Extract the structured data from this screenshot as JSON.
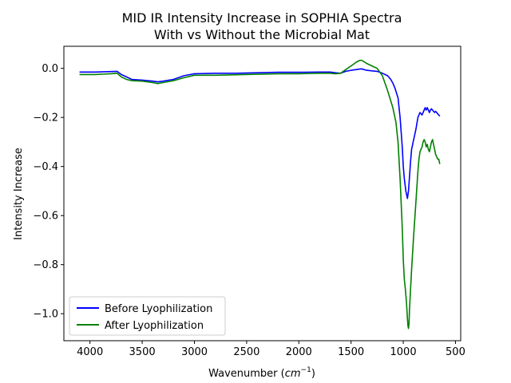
{
  "chart_data": {
    "type": "line",
    "title_line1": "MID IR Intensity Increase in SOPHIA Spectra",
    "title_line2": "With vs Without the Microbial Mat",
    "xlabel": "Wavenumber",
    "xlabel_unit_base": "cm",
    "xlabel_unit_exp": "−1",
    "ylabel": "Intensity Increase",
    "x_reversed": true,
    "xlim": [
      4250,
      450
    ],
    "ylim": [
      -1.11,
      0.09
    ],
    "xticks": [
      4000,
      3500,
      3000,
      2500,
      2000,
      1500,
      1000,
      500
    ],
    "yticks": [
      0.0,
      -0.2,
      -0.4,
      -0.6,
      -0.8,
      -1.0
    ],
    "ytick_labels": [
      "0.0",
      "−0.2",
      "−0.4",
      "−0.6",
      "−0.8",
      "−1.0"
    ],
    "grid": false,
    "legend_position": "lower-left",
    "series": [
      {
        "name": "Before Lyophilization",
        "color": "#0000ff",
        "x": [
          4100,
          3950,
          3800,
          3740,
          3700,
          3650,
          3600,
          3500,
          3400,
          3350,
          3300,
          3200,
          3100,
          3000,
          2800,
          2600,
          2400,
          2200,
          2000,
          1800,
          1700,
          1650,
          1600,
          1550,
          1500,
          1450,
          1420,
          1400,
          1350,
          1300,
          1250,
          1200,
          1150,
          1120,
          1100,
          1080,
          1050,
          1030,
          1010,
          1000,
          990,
          975,
          960,
          950,
          940,
          930,
          920,
          900,
          880,
          860,
          840,
          820,
          800,
          790,
          780,
          770,
          760,
          750,
          740,
          730,
          720,
          710,
          700,
          690,
          680,
          670,
          660,
          650
        ],
        "y": [
          -0.015,
          -0.015,
          -0.013,
          -0.012,
          -0.025,
          -0.035,
          -0.045,
          -0.048,
          -0.052,
          -0.055,
          -0.052,
          -0.045,
          -0.03,
          -0.022,
          -0.02,
          -0.02,
          -0.018,
          -0.016,
          -0.016,
          -0.015,
          -0.015,
          -0.018,
          -0.02,
          -0.012,
          -0.008,
          -0.005,
          -0.003,
          -0.002,
          -0.008,
          -0.01,
          -0.012,
          -0.02,
          -0.03,
          -0.045,
          -0.06,
          -0.08,
          -0.12,
          -0.2,
          -0.32,
          -0.4,
          -0.45,
          -0.5,
          -0.53,
          -0.5,
          -0.44,
          -0.38,
          -0.33,
          -0.29,
          -0.25,
          -0.2,
          -0.18,
          -0.19,
          -0.17,
          -0.16,
          -0.17,
          -0.16,
          -0.17,
          -0.18,
          -0.17,
          -0.165,
          -0.17,
          -0.175,
          -0.18,
          -0.175,
          -0.18,
          -0.185,
          -0.19,
          -0.195
        ]
      },
      {
        "name": "After Lyophilization",
        "color": "#008000",
        "x": [
          4100,
          3950,
          3800,
          3740,
          3700,
          3650,
          3600,
          3500,
          3400,
          3350,
          3300,
          3200,
          3100,
          3000,
          2800,
          2600,
          2400,
          2200,
          2000,
          1800,
          1700,
          1650,
          1600,
          1550,
          1500,
          1450,
          1420,
          1400,
          1380,
          1350,
          1300,
          1250,
          1200,
          1150,
          1100,
          1070,
          1050,
          1030,
          1010,
          1000,
          990,
          980,
          970,
          960,
          955,
          950,
          945,
          940,
          930,
          920,
          900,
          880,
          860,
          850,
          840,
          830,
          820,
          810,
          800,
          790,
          780,
          770,
          760,
          750,
          740,
          730,
          720,
          710,
          700,
          690,
          680,
          670,
          660,
          650
        ],
        "y": [
          -0.025,
          -0.025,
          -0.022,
          -0.02,
          -0.035,
          -0.045,
          -0.05,
          -0.052,
          -0.058,
          -0.062,
          -0.058,
          -0.05,
          -0.038,
          -0.028,
          -0.028,
          -0.026,
          -0.024,
          -0.022,
          -0.022,
          -0.02,
          -0.02,
          -0.022,
          -0.02,
          -0.005,
          0.01,
          0.025,
          0.032,
          0.033,
          0.028,
          0.02,
          0.01,
          0.0,
          -0.03,
          -0.09,
          -0.16,
          -0.22,
          -0.3,
          -0.45,
          -0.65,
          -0.78,
          -0.86,
          -0.9,
          -0.95,
          -1.02,
          -1.05,
          -1.06,
          -1.04,
          -0.98,
          -0.9,
          -0.82,
          -0.68,
          -0.55,
          -0.42,
          -0.37,
          -0.34,
          -0.33,
          -0.32,
          -0.3,
          -0.29,
          -0.3,
          -0.32,
          -0.31,
          -0.33,
          -0.34,
          -0.32,
          -0.3,
          -0.29,
          -0.31,
          -0.33,
          -0.35,
          -0.36,
          -0.37,
          -0.37,
          -0.39
        ]
      }
    ]
  }
}
